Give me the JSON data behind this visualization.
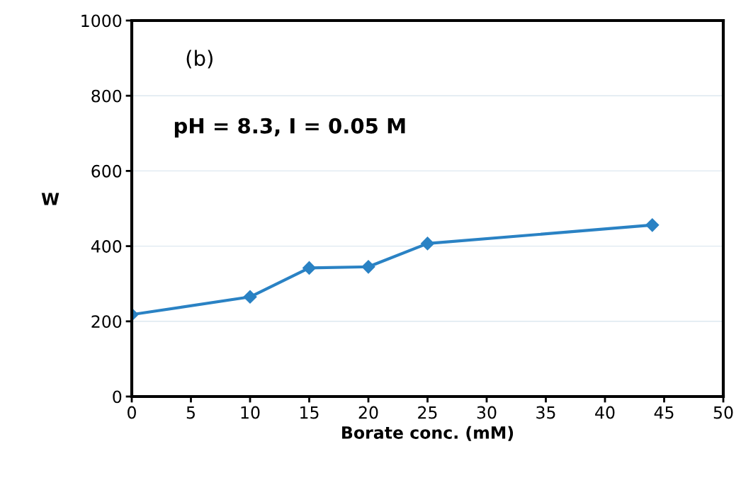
{
  "chart_data": {
    "type": "line",
    "xlabel": "Borate conc. (mM)",
    "ylabel": "W",
    "annotations": [
      "(b)",
      "pH = 8.3, I = 0.05 M"
    ],
    "x": [
      0,
      10,
      15,
      20,
      25,
      44
    ],
    "series": [
      {
        "color": "#2a82c4",
        "values": [
          218,
          265,
          342,
          345,
          407,
          456
        ]
      }
    ],
    "xlim": [
      0,
      50
    ],
    "xticks": [
      0,
      5,
      10,
      15,
      20,
      25,
      30,
      35,
      40,
      45,
      50
    ],
    "ylim": [
      0,
      1000
    ],
    "yticks": [
      0,
      200,
      400,
      600,
      800,
      1000
    ],
    "grid": "y",
    "marker": "diamond",
    "line_style": "solid"
  }
}
